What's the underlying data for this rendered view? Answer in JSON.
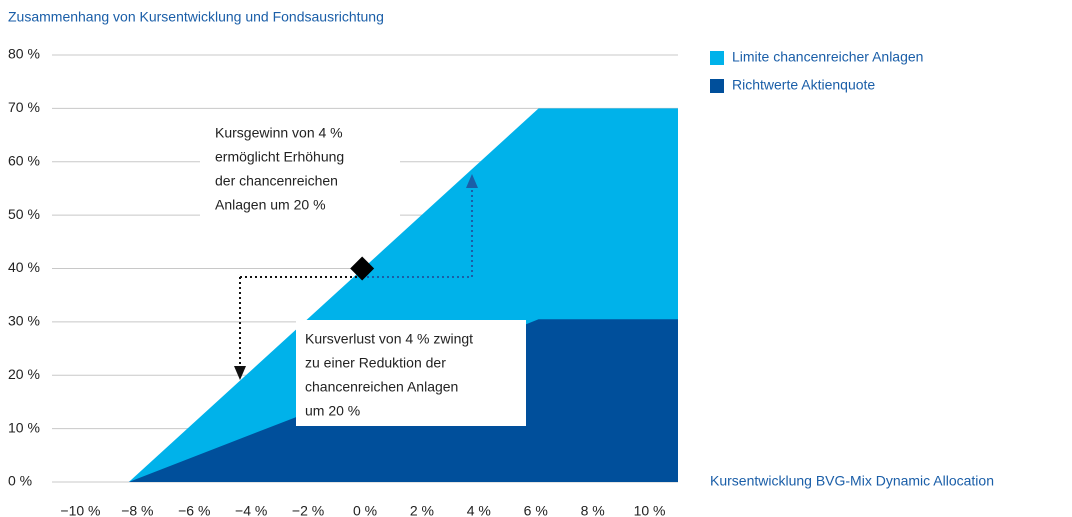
{
  "chart_data": {
    "type": "area",
    "title": "Zusammenhang von Kursentwicklung und Fondsausrichtung",
    "x_label": "Kursentwicklung BVG-Mix Dynamic Allocation",
    "series": [
      {
        "name": "Limite chancenreicher Anlagen",
        "color": "#00b2ea",
        "x": [
          -11,
          -8.3,
          6.1,
          11
        ],
        "values": [
          0,
          0,
          70,
          70
        ]
      },
      {
        "name": "Richtwerte Aktienquote",
        "color": "#004f9b",
        "x": [
          -11,
          -8.3,
          -2.5,
          6.1,
          11
        ],
        "values": [
          0,
          0,
          12,
          30.5,
          30.5
        ]
      }
    ],
    "marker": {
      "x": -0.1,
      "y": 40
    },
    "annotations": [
      {
        "lines": [
          "Kursgewinn von 4 %",
          "ermöglicht Erhöhung",
          "der chancenreichen",
          "Anlagen um 20 %"
        ]
      },
      {
        "lines": [
          "Kursverlust von 4 % zwingt",
          "zu einer Reduktion der",
          "chancenreichen Anlagen",
          "um 20 %"
        ]
      }
    ],
    "xlim": [
      -11,
      11
    ],
    "ylim": [
      0,
      80
    ],
    "xticks": [
      {
        "value": -10,
        "label": "−10 %"
      },
      {
        "value": -8,
        "label": "−8 %"
      },
      {
        "value": -6,
        "label": "−6 %"
      },
      {
        "value": -4,
        "label": "−4 %"
      },
      {
        "value": -2,
        "label": "−2 %"
      },
      {
        "value": 0,
        "label": "0 %"
      },
      {
        "value": 2,
        "label": "2 %"
      },
      {
        "value": 4,
        "label": "4 %"
      },
      {
        "value": 6,
        "label": "6 %"
      },
      {
        "value": 8,
        "label": "8 %"
      },
      {
        "value": 10,
        "label": "10 %"
      }
    ],
    "yticks": [
      {
        "value": 0,
        "label": "0 %"
      },
      {
        "value": 10,
        "label": "10 %"
      },
      {
        "value": 20,
        "label": "20 %"
      },
      {
        "value": 30,
        "label": "30 %"
      },
      {
        "value": 40,
        "label": "40 %"
      },
      {
        "value": 50,
        "label": "50 %"
      },
      {
        "value": 60,
        "label": "60 %"
      },
      {
        "value": 70,
        "label": "70 %"
      },
      {
        "value": 80,
        "label": "80 %"
      }
    ],
    "grid": true
  }
}
